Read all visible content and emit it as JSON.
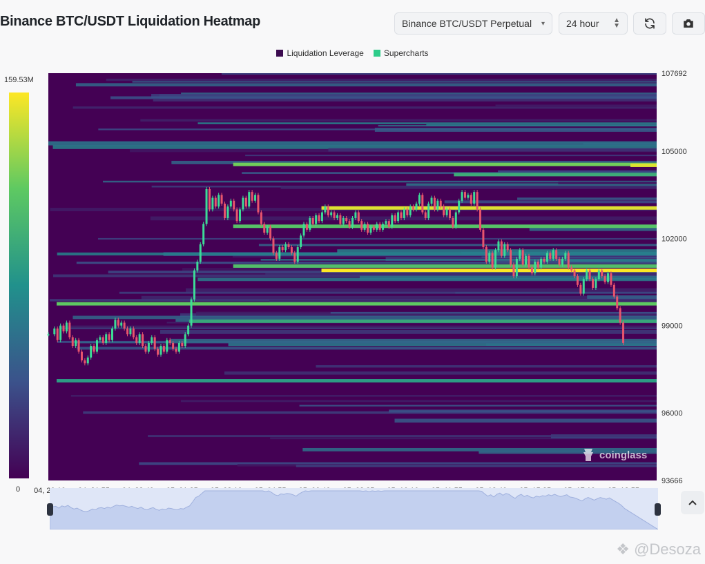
{
  "header": {
    "title": "Binance BTC/USDT Liquidation Heatmap",
    "symbol_select": "Binance BTC/USDT Perpetual",
    "range_select": "24 hour"
  },
  "icons": {
    "symbol_caret": "chevron-down-icon",
    "range_stepper": "up-down-arrows-icon",
    "refresh": "refresh-icon",
    "screenshot": "camera-icon",
    "scroll_up": "chevron-up-icon",
    "credit_logo": "diamond-logo"
  },
  "colorbar": {
    "max_label": "159.53M",
    "min_label": "0"
  },
  "watermark": "coinglass",
  "credit": "@Desoza",
  "colors": {
    "background_low": "#440154",
    "mid": "#21918c",
    "green": "#5ec962",
    "high": "#fde725",
    "candle_up": "#3ddc97",
    "candle_down": "#e8556d"
  },
  "chart_data": {
    "type": "heatmap",
    "title": "Binance BTC/USDT Liquidation Heatmap",
    "legend": [
      "Liquidation Leverage",
      "Supercharts"
    ],
    "legend_colors": [
      "#3b0a4f",
      "#2ecc8a"
    ],
    "legend_placement": "top-center",
    "x_ticks": [
      "04, 20:10",
      "04, 21:55",
      "04, 23:40",
      "05, 01:25",
      "05, 03:10",
      "05, 04:55",
      "05, 06:40",
      "05, 08:25",
      "05, 10:10",
      "05, 11:55",
      "05, 13:40",
      "05, 15:25",
      "05, 17:10",
      "05, 18:55"
    ],
    "y_ticks": [
      107692,
      105000,
      102000,
      99000,
      96000,
      93666
    ],
    "ylim": [
      93666,
      107692
    ],
    "colorbar_range": [
      0,
      159530000
    ],
    "price_path": {
      "x": [
        "04, 20:10",
        "04, 21:55",
        "04, 23:40",
        "05, 01:25",
        "05, 03:10",
        "05, 04:55",
        "05, 06:40",
        "05, 08:25",
        "05, 10:10",
        "05, 11:55",
        "05, 13:40",
        "05, 15:25",
        "05, 17:10",
        "05, 18:55"
      ],
      "close": [
        98700,
        98000,
        99200,
        98300,
        103500,
        103500,
        101000,
        102800,
        102600,
        102300,
        103500,
        101200,
        101200,
        100200
      ]
    },
    "liquidation_bands": [
      {
        "price": 104550,
        "start": "05, 03:10",
        "level": 0.78
      },
      {
        "price": 104520,
        "start": "05, 18:55",
        "level": 0.95
      },
      {
        "price": 104200,
        "start": "05, 11:55",
        "level": 0.62
      },
      {
        "price": 103050,
        "start": "05, 06:40",
        "level": 0.95
      },
      {
        "price": 102420,
        "start": "05, 03:10",
        "level": 0.72
      },
      {
        "price": 101050,
        "start": "05, 03:10",
        "level": 0.7
      },
      {
        "price": 100900,
        "start": "05, 06:40",
        "level": 1.0
      },
      {
        "price": 99750,
        "start": "04, 20:10",
        "level": 0.75
      },
      {
        "price": 99150,
        "start": "05, 01:25",
        "level": 0.6
      },
      {
        "price": 97100,
        "start": "04, 20:10",
        "level": 0.55
      }
    ],
    "candles": [
      {
        "t": 0.0,
        "o": 98700,
        "c": 98700
      },
      {
        "t": 0.01,
        "o": 98700,
        "c": 98900
      },
      {
        "t": 0.015,
        "o": 98900,
        "c": 98500
      },
      {
        "t": 0.02,
        "o": 98500,
        "c": 99000
      },
      {
        "t": 0.025,
        "o": 99000,
        "c": 98800
      },
      {
        "t": 0.03,
        "o": 98800,
        "c": 99100
      },
      {
        "t": 0.035,
        "o": 99100,
        "c": 98600
      },
      {
        "t": 0.04,
        "o": 98600,
        "c": 98300
      },
      {
        "t": 0.045,
        "o": 98300,
        "c": 98500
      },
      {
        "t": 0.05,
        "o": 98500,
        "c": 98100
      },
      {
        "t": 0.055,
        "o": 98100,
        "c": 97800
      },
      {
        "t": 0.06,
        "o": 97800,
        "c": 97700
      },
      {
        "t": 0.065,
        "o": 97700,
        "c": 97900
      },
      {
        "t": 0.07,
        "o": 97900,
        "c": 98300
      },
      {
        "t": 0.075,
        "o": 98300,
        "c": 98100
      },
      {
        "t": 0.08,
        "o": 98100,
        "c": 98500
      },
      {
        "t": 0.085,
        "o": 98500,
        "c": 98600
      },
      {
        "t": 0.09,
        "o": 98600,
        "c": 98400
      },
      {
        "t": 0.095,
        "o": 98400,
        "c": 98700
      },
      {
        "t": 0.1,
        "o": 98700,
        "c": 98500
      },
      {
        "t": 0.105,
        "o": 98500,
        "c": 98900
      },
      {
        "t": 0.11,
        "o": 98900,
        "c": 99200
      },
      {
        "t": 0.115,
        "o": 99200,
        "c": 99000
      },
      {
        "t": 0.12,
        "o": 99000,
        "c": 99100
      },
      {
        "t": 0.125,
        "o": 99100,
        "c": 98900
      },
      {
        "t": 0.13,
        "o": 98900,
        "c": 98700
      },
      {
        "t": 0.135,
        "o": 98700,
        "c": 98900
      },
      {
        "t": 0.14,
        "o": 98900,
        "c": 98600
      },
      {
        "t": 0.145,
        "o": 98600,
        "c": 98400
      },
      {
        "t": 0.15,
        "o": 98400,
        "c": 98700
      },
      {
        "t": 0.155,
        "o": 98700,
        "c": 98300
      },
      {
        "t": 0.16,
        "o": 98300,
        "c": 98100
      },
      {
        "t": 0.165,
        "o": 98100,
        "c": 98400
      },
      {
        "t": 0.17,
        "o": 98400,
        "c": 98600
      },
      {
        "t": 0.175,
        "o": 98600,
        "c": 98200
      },
      {
        "t": 0.18,
        "o": 98200,
        "c": 98000
      },
      {
        "t": 0.185,
        "o": 98000,
        "c": 98300
      },
      {
        "t": 0.19,
        "o": 98300,
        "c": 98100
      },
      {
        "t": 0.195,
        "o": 98100,
        "c": 98500
      },
      {
        "t": 0.2,
        "o": 98500,
        "c": 98400
      },
      {
        "t": 0.205,
        "o": 98400,
        "c": 98200
      },
      {
        "t": 0.21,
        "o": 98200,
        "c": 98100
      },
      {
        "t": 0.215,
        "o": 98100,
        "c": 98400
      },
      {
        "t": 0.22,
        "o": 98400,
        "c": 98300
      },
      {
        "t": 0.225,
        "o": 98300,
        "c": 98700
      },
      {
        "t": 0.23,
        "o": 98700,
        "c": 99000
      },
      {
        "t": 0.235,
        "o": 99000,
        "c": 99900
      },
      {
        "t": 0.24,
        "o": 99900,
        "c": 100900
      },
      {
        "t": 0.245,
        "o": 100900,
        "c": 101200
      },
      {
        "t": 0.25,
        "o": 101200,
        "c": 101800
      },
      {
        "t": 0.255,
        "o": 101800,
        "c": 102500
      },
      {
        "t": 0.26,
        "o": 102500,
        "c": 103700
      },
      {
        "t": 0.265,
        "o": 103700,
        "c": 103000
      },
      {
        "t": 0.27,
        "o": 103000,
        "c": 103400
      },
      {
        "t": 0.275,
        "o": 103400,
        "c": 103100
      },
      {
        "t": 0.28,
        "o": 103100,
        "c": 103500
      },
      {
        "t": 0.285,
        "o": 103500,
        "c": 103200
      },
      {
        "t": 0.29,
        "o": 103200,
        "c": 102700
      },
      {
        "t": 0.295,
        "o": 102700,
        "c": 103100
      },
      {
        "t": 0.3,
        "o": 103100,
        "c": 103300
      },
      {
        "t": 0.305,
        "o": 103300,
        "c": 103000
      },
      {
        "t": 0.31,
        "o": 103000,
        "c": 102600
      },
      {
        "t": 0.315,
        "o": 102600,
        "c": 103000
      },
      {
        "t": 0.32,
        "o": 103000,
        "c": 103400
      },
      {
        "t": 0.325,
        "o": 103400,
        "c": 103100
      },
      {
        "t": 0.33,
        "o": 103100,
        "c": 103600
      },
      {
        "t": 0.335,
        "o": 103600,
        "c": 103300
      },
      {
        "t": 0.34,
        "o": 103300,
        "c": 103500
      },
      {
        "t": 0.345,
        "o": 103500,
        "c": 102900
      },
      {
        "t": 0.35,
        "o": 102900,
        "c": 102500
      },
      {
        "t": 0.355,
        "o": 102500,
        "c": 102200
      },
      {
        "t": 0.36,
        "o": 102200,
        "c": 102400
      },
      {
        "t": 0.365,
        "o": 102400,
        "c": 102000
      },
      {
        "t": 0.37,
        "o": 102000,
        "c": 101500
      },
      {
        "t": 0.375,
        "o": 101500,
        "c": 101300
      },
      {
        "t": 0.38,
        "o": 101300,
        "c": 101700
      },
      {
        "t": 0.385,
        "o": 101700,
        "c": 101600
      },
      {
        "t": 0.39,
        "o": 101600,
        "c": 101800
      },
      {
        "t": 0.395,
        "o": 101800,
        "c": 101700
      },
      {
        "t": 0.4,
        "o": 101700,
        "c": 101500
      },
      {
        "t": 0.405,
        "o": 101500,
        "c": 101200
      },
      {
        "t": 0.41,
        "o": 101200,
        "c": 101700
      },
      {
        "t": 0.415,
        "o": 101700,
        "c": 102100
      },
      {
        "t": 0.42,
        "o": 102100,
        "c": 102500
      },
      {
        "t": 0.425,
        "o": 102500,
        "c": 102300
      },
      {
        "t": 0.43,
        "o": 102300,
        "c": 102700
      },
      {
        "t": 0.435,
        "o": 102700,
        "c": 102500
      },
      {
        "t": 0.44,
        "o": 102500,
        "c": 102800
      },
      {
        "t": 0.445,
        "o": 102800,
        "c": 102600
      },
      {
        "t": 0.45,
        "o": 102600,
        "c": 102900
      },
      {
        "t": 0.455,
        "o": 102900,
        "c": 103100
      },
      {
        "t": 0.46,
        "o": 103100,
        "c": 102800
      },
      {
        "t": 0.465,
        "o": 102800,
        "c": 102900
      },
      {
        "t": 0.47,
        "o": 102900,
        "c": 102700
      },
      {
        "t": 0.475,
        "o": 102700,
        "c": 102800
      },
      {
        "t": 0.48,
        "o": 102800,
        "c": 102500
      },
      {
        "t": 0.485,
        "o": 102500,
        "c": 102700
      },
      {
        "t": 0.49,
        "o": 102700,
        "c": 102600
      },
      {
        "t": 0.495,
        "o": 102600,
        "c": 102400
      },
      {
        "t": 0.5,
        "o": 102400,
        "c": 102700
      },
      {
        "t": 0.505,
        "o": 102700,
        "c": 102900
      },
      {
        "t": 0.51,
        "o": 102900,
        "c": 102600
      },
      {
        "t": 0.515,
        "o": 102600,
        "c": 102300
      },
      {
        "t": 0.52,
        "o": 102300,
        "c": 102500
      },
      {
        "t": 0.525,
        "o": 102500,
        "c": 102200
      },
      {
        "t": 0.53,
        "o": 102200,
        "c": 102400
      },
      {
        "t": 0.535,
        "o": 102400,
        "c": 102300
      },
      {
        "t": 0.54,
        "o": 102300,
        "c": 102500
      },
      {
        "t": 0.545,
        "o": 102500,
        "c": 102300
      },
      {
        "t": 0.55,
        "o": 102300,
        "c": 102500
      },
      {
        "t": 0.555,
        "o": 102500,
        "c": 102600
      },
      {
        "t": 0.56,
        "o": 102600,
        "c": 102400
      },
      {
        "t": 0.565,
        "o": 102400,
        "c": 102800
      },
      {
        "t": 0.57,
        "o": 102800,
        "c": 102600
      },
      {
        "t": 0.575,
        "o": 102600,
        "c": 102900
      },
      {
        "t": 0.58,
        "o": 102900,
        "c": 102700
      },
      {
        "t": 0.585,
        "o": 102700,
        "c": 103000
      },
      {
        "t": 0.59,
        "o": 103000,
        "c": 102800
      },
      {
        "t": 0.595,
        "o": 102800,
        "c": 103100
      },
      {
        "t": 0.6,
        "o": 103100,
        "c": 103000
      },
      {
        "t": 0.605,
        "o": 103000,
        "c": 103200
      },
      {
        "t": 0.61,
        "o": 103200,
        "c": 103500
      },
      {
        "t": 0.615,
        "o": 103500,
        "c": 102900
      },
      {
        "t": 0.62,
        "o": 102900,
        "c": 102700
      },
      {
        "t": 0.625,
        "o": 102700,
        "c": 103200
      },
      {
        "t": 0.63,
        "o": 103200,
        "c": 103400
      },
      {
        "t": 0.635,
        "o": 103400,
        "c": 103000
      },
      {
        "t": 0.64,
        "o": 103000,
        "c": 103300
      },
      {
        "t": 0.645,
        "o": 103300,
        "c": 103100
      },
      {
        "t": 0.65,
        "o": 103100,
        "c": 102800
      },
      {
        "t": 0.655,
        "o": 102800,
        "c": 103000
      },
      {
        "t": 0.66,
        "o": 103000,
        "c": 102700
      },
      {
        "t": 0.665,
        "o": 102700,
        "c": 102400
      },
      {
        "t": 0.67,
        "o": 102400,
        "c": 102900
      },
      {
        "t": 0.675,
        "o": 102900,
        "c": 103300
      },
      {
        "t": 0.68,
        "o": 103300,
        "c": 103600
      },
      {
        "t": 0.685,
        "o": 103600,
        "c": 103400
      },
      {
        "t": 0.69,
        "o": 103400,
        "c": 103500
      },
      {
        "t": 0.695,
        "o": 103500,
        "c": 103200
      },
      {
        "t": 0.7,
        "o": 103200,
        "c": 103600
      },
      {
        "t": 0.705,
        "o": 103600,
        "c": 103000
      },
      {
        "t": 0.71,
        "o": 103000,
        "c": 102300
      },
      {
        "t": 0.715,
        "o": 102300,
        "c": 101700
      },
      {
        "t": 0.72,
        "o": 101700,
        "c": 101200
      },
      {
        "t": 0.725,
        "o": 101200,
        "c": 101500
      },
      {
        "t": 0.73,
        "o": 101500,
        "c": 101000
      },
      {
        "t": 0.735,
        "o": 101000,
        "c": 101600
      },
      {
        "t": 0.74,
        "o": 101600,
        "c": 101900
      },
      {
        "t": 0.745,
        "o": 101900,
        "c": 101400
      },
      {
        "t": 0.75,
        "o": 101400,
        "c": 101800
      },
      {
        "t": 0.755,
        "o": 101800,
        "c": 101600
      },
      {
        "t": 0.76,
        "o": 101600,
        "c": 101100
      },
      {
        "t": 0.765,
        "o": 101100,
        "c": 100700
      },
      {
        "t": 0.77,
        "o": 100700,
        "c": 101300
      },
      {
        "t": 0.775,
        "o": 101300,
        "c": 101600
      },
      {
        "t": 0.78,
        "o": 101600,
        "c": 101100
      },
      {
        "t": 0.785,
        "o": 101100,
        "c": 101400
      },
      {
        "t": 0.79,
        "o": 101400,
        "c": 101000
      },
      {
        "t": 0.795,
        "o": 101000,
        "c": 100800
      },
      {
        "t": 0.8,
        "o": 100800,
        "c": 101200
      },
      {
        "t": 0.805,
        "o": 101200,
        "c": 101000
      },
      {
        "t": 0.81,
        "o": 101000,
        "c": 101300
      },
      {
        "t": 0.815,
        "o": 101300,
        "c": 101200
      },
      {
        "t": 0.82,
        "o": 101200,
        "c": 101500
      },
      {
        "t": 0.825,
        "o": 101500,
        "c": 101300
      },
      {
        "t": 0.83,
        "o": 101300,
        "c": 101600
      },
      {
        "t": 0.835,
        "o": 101600,
        "c": 101300
      },
      {
        "t": 0.84,
        "o": 101300,
        "c": 101100
      },
      {
        "t": 0.845,
        "o": 101100,
        "c": 101300
      },
      {
        "t": 0.85,
        "o": 101300,
        "c": 101500
      },
      {
        "t": 0.855,
        "o": 101500,
        "c": 101000
      },
      {
        "t": 0.86,
        "o": 101000,
        "c": 100900
      },
      {
        "t": 0.865,
        "o": 100900,
        "c": 100700
      },
      {
        "t": 0.87,
        "o": 100700,
        "c": 100400
      },
      {
        "t": 0.875,
        "o": 100400,
        "c": 100100
      },
      {
        "t": 0.88,
        "o": 100100,
        "c": 100600
      },
      {
        "t": 0.885,
        "o": 100600,
        "c": 100900
      },
      {
        "t": 0.89,
        "o": 100900,
        "c": 100600
      },
      {
        "t": 0.895,
        "o": 100600,
        "c": 100300
      },
      {
        "t": 0.9,
        "o": 100300,
        "c": 100600
      },
      {
        "t": 0.905,
        "o": 100600,
        "c": 100900
      },
      {
        "t": 0.91,
        "o": 100900,
        "c": 100700
      },
      {
        "t": 0.915,
        "o": 100700,
        "c": 100500
      },
      {
        "t": 0.92,
        "o": 100500,
        "c": 100800
      },
      {
        "t": 0.925,
        "o": 100800,
        "c": 100400
      },
      {
        "t": 0.93,
        "o": 100400,
        "c": 100000
      },
      {
        "t": 0.935,
        "o": 100000,
        "c": 99600
      },
      {
        "t": 0.94,
        "o": 99600,
        "c": 99100
      },
      {
        "t": 0.945,
        "o": 99100,
        "c": 98400
      }
    ]
  }
}
